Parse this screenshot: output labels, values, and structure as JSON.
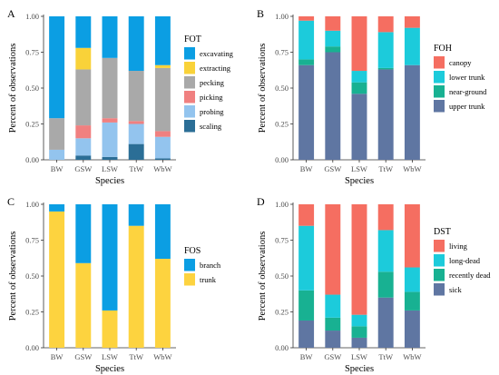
{
  "colors": {
    "excavating": "#0b9ee3",
    "extracting": "#f9d239",
    "pecking": "#a9a9a9",
    "picking": "#f08080",
    "probing": "#93c4ee",
    "scaling": "#2b6e96",
    "canopy": "#f56e61",
    "lower trunk": "#1ccbdb",
    "near-ground": "#18b192",
    "upper trunk": "#5f76a2",
    "branch": "#0b9ee3",
    "trunk": "#fdd33f",
    "living": "#f56e61",
    "long-dead": "#1ccbdb",
    "recently dead": "#18b192",
    "sick": "#5f76a2"
  },
  "chart_data": [
    {
      "panel": "A",
      "type": "bar",
      "stacked": true,
      "xlabel": "Species",
      "ylabel": "Percent of observations",
      "ylim": [
        0,
        1
      ],
      "yticks": [
        "0.00",
        "0.25",
        "0.50",
        "0.75",
        "1.00"
      ],
      "categories": [
        "BW",
        "GSW",
        "LSW",
        "TtW",
        "WbW"
      ],
      "legend_title": "FOT",
      "legend_position": "right",
      "legend_entries": [
        "excavating",
        "extracting",
        "pecking",
        "picking",
        "probing",
        "scaling"
      ],
      "series": [
        {
          "name": "scaling",
          "values": [
            0.0,
            0.03,
            0.02,
            0.11,
            0.01
          ]
        },
        {
          "name": "probing",
          "values": [
            0.07,
            0.12,
            0.24,
            0.14,
            0.15
          ]
        },
        {
          "name": "picking",
          "values": [
            0.0,
            0.09,
            0.03,
            0.02,
            0.04
          ]
        },
        {
          "name": "pecking",
          "values": [
            0.22,
            0.39,
            0.42,
            0.35,
            0.44
          ]
        },
        {
          "name": "extracting",
          "values": [
            0.0,
            0.15,
            0.0,
            0.0,
            0.02
          ]
        },
        {
          "name": "excavating",
          "values": [
            0.71,
            0.22,
            0.29,
            0.38,
            0.34
          ]
        }
      ]
    },
    {
      "panel": "B",
      "type": "bar",
      "stacked": true,
      "xlabel": "Species",
      "ylabel": "Percent of observations",
      "ylim": [
        0,
        1
      ],
      "yticks": [
        "0.00",
        "0.25",
        "0.50",
        "0.75",
        "1.00"
      ],
      "categories": [
        "BW",
        "GSW",
        "LSW",
        "TtW",
        "WbW"
      ],
      "legend_title": "FOH",
      "legend_position": "right",
      "legend_entries": [
        "canopy",
        "lower trunk",
        "near-ground",
        "upper trunk"
      ],
      "series": [
        {
          "name": "upper trunk",
          "values": [
            0.66,
            0.75,
            0.46,
            0.63,
            0.66
          ]
        },
        {
          "name": "near-ground",
          "values": [
            0.04,
            0.04,
            0.08,
            0.01,
            0.0
          ]
        },
        {
          "name": "lower trunk",
          "values": [
            0.27,
            0.11,
            0.08,
            0.25,
            0.26
          ]
        },
        {
          "name": "canopy",
          "values": [
            0.03,
            0.1,
            0.38,
            0.11,
            0.08
          ]
        }
      ]
    },
    {
      "panel": "C",
      "type": "bar",
      "stacked": true,
      "xlabel": "Species",
      "ylabel": "Percent of observations",
      "ylim": [
        0,
        1
      ],
      "yticks": [
        "0.00",
        "0.25",
        "0.50",
        "0.75",
        "1.00"
      ],
      "categories": [
        "BW",
        "GSW",
        "LSW",
        "TtW",
        "WbW"
      ],
      "legend_title": "FOS",
      "legend_position": "right",
      "legend_entries": [
        "branch",
        "trunk"
      ],
      "series": [
        {
          "name": "trunk",
          "values": [
            0.95,
            0.59,
            0.26,
            0.85,
            0.62
          ]
        },
        {
          "name": "branch",
          "values": [
            0.05,
            0.41,
            0.74,
            0.15,
            0.38
          ]
        }
      ]
    },
    {
      "panel": "D",
      "type": "bar",
      "stacked": true,
      "xlabel": "Species",
      "ylabel": "Percent of observations",
      "ylim": [
        0,
        1
      ],
      "yticks": [
        "0.00",
        "0.25",
        "0.50",
        "0.75",
        "1.00"
      ],
      "categories": [
        "BW",
        "GSW",
        "LSW",
        "TtW",
        "WbW"
      ],
      "legend_title": "DST",
      "legend_position": "right",
      "legend_entries": [
        "living",
        "long-dead",
        "recently dead",
        "sick"
      ],
      "series": [
        {
          "name": "sick",
          "values": [
            0.19,
            0.12,
            0.07,
            0.35,
            0.26
          ]
        },
        {
          "name": "recently dead",
          "values": [
            0.21,
            0.09,
            0.08,
            0.18,
            0.13
          ]
        },
        {
          "name": "long-dead",
          "values": [
            0.45,
            0.16,
            0.08,
            0.29,
            0.17
          ]
        },
        {
          "name": "living",
          "values": [
            0.15,
            0.63,
            0.77,
            0.18,
            0.44
          ]
        }
      ]
    }
  ]
}
